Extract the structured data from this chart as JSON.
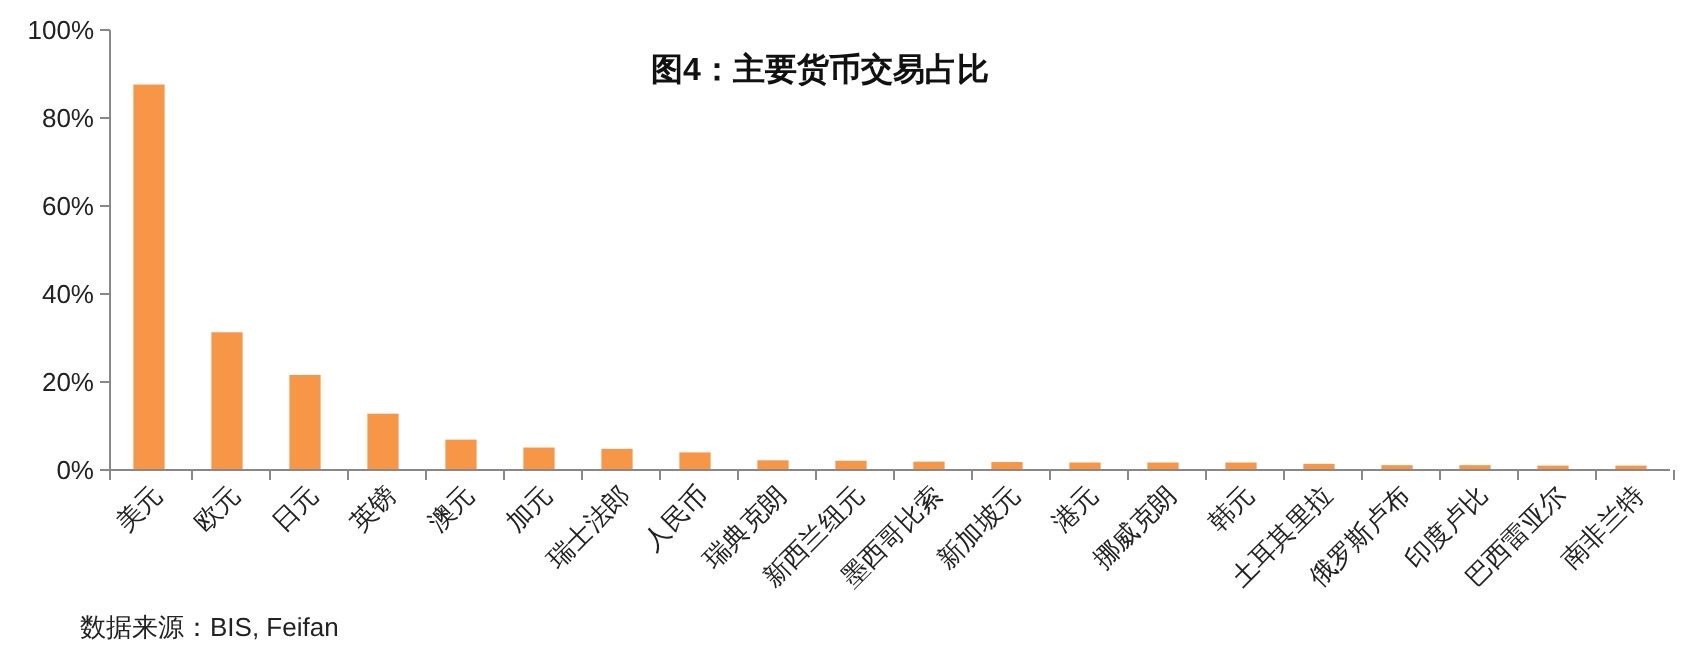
{
  "chart_data": {
    "type": "bar",
    "title": "图4：主要货币交易占比",
    "categories": [
      "美元",
      "欧元",
      "日元",
      "英镑",
      "澳元",
      "加元",
      "瑞士法郎",
      "人民币",
      "瑞典克朗",
      "新西兰纽元",
      "墨西哥比索",
      "新加坡元",
      "港元",
      "挪威克朗",
      "韩元",
      "土耳其里拉",
      "俄罗斯卢布",
      "印度卢比",
      "巴西雷亚尔",
      "南非兰特"
    ],
    "values": [
      87.6,
      31.3,
      21.6,
      12.8,
      6.9,
      5.1,
      4.8,
      4.0,
      2.2,
      2.1,
      1.9,
      1.8,
      1.7,
      1.7,
      1.7,
      1.4,
      1.1,
      1.1,
      1.0,
      1.0
    ],
    "color": "#f79646",
    "ylim": [
      0,
      100
    ],
    "yticks": [
      {
        "value": 0,
        "label": "0%"
      },
      {
        "value": 20,
        "label": "20%"
      },
      {
        "value": 40,
        "label": "40%"
      },
      {
        "value": 60,
        "label": "60%"
      },
      {
        "value": 80,
        "label": "80%"
      },
      {
        "value": 100,
        "label": "100%"
      }
    ],
    "annotations": [
      "数据来源：BIS, Feifan"
    ]
  }
}
